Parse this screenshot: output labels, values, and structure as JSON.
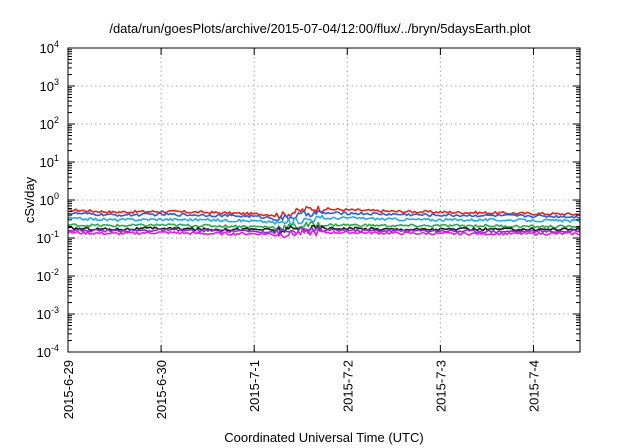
{
  "chart_data": {
    "type": "line",
    "title": "/data/run/goesPlots/archive/2015-07-04/12:00/flux/../bryn/5daysEarth.plot",
    "xlabel": "Coordinated Universal Time (UTC)",
    "ylabel": "cSv/day",
    "x_tick_labels": [
      "2015-6-29",
      "2015-6-30",
      "2015-7-1",
      "2015-7-2",
      "2015-7-3",
      "2015-7-4"
    ],
    "xlim": [
      0,
      5.5
    ],
    "y_scale": "log",
    "ylim": [
      0.0001,
      10000
    ],
    "y_ticks": [
      {
        "base": "10",
        "exp": "4"
      },
      {
        "base": "10",
        "exp": "3"
      },
      {
        "base": "10",
        "exp": "2"
      },
      {
        "base": "10",
        "exp": "1"
      },
      {
        "base": "10",
        "exp": "0"
      },
      {
        "base": "10",
        "exp": "-1"
      },
      {
        "base": "10",
        "exp": "-2"
      },
      {
        "base": "10",
        "exp": "-3"
      },
      {
        "base": "10",
        "exp": "-4"
      }
    ],
    "grid": true,
    "series": [
      {
        "color": "#e8231c",
        "x": [
          0,
          0.5,
          1,
          1.5,
          2,
          2.3,
          2.6,
          3,
          3.5,
          4,
          4.5,
          5,
          5.5
        ],
        "values": [
          0.55,
          0.48,
          0.5,
          0.47,
          0.43,
          0.4,
          0.6,
          0.55,
          0.5,
          0.48,
          0.46,
          0.44,
          0.42
        ]
      },
      {
        "color": "#2b5fd9",
        "x": [
          0,
          0.5,
          1,
          1.5,
          2,
          2.3,
          2.6,
          3,
          3.5,
          4,
          4.5,
          5,
          5.5
        ],
        "values": [
          0.45,
          0.4,
          0.42,
          0.4,
          0.37,
          0.32,
          0.45,
          0.45,
          0.42,
          0.4,
          0.39,
          0.38,
          0.36
        ]
      },
      {
        "color": "#29a8e0",
        "x": [
          0,
          0.5,
          1,
          1.5,
          2,
          2.3,
          2.6,
          3,
          3.5,
          4,
          4.5,
          5,
          5.5
        ],
        "values": [
          0.33,
          0.3,
          0.31,
          0.3,
          0.28,
          0.25,
          0.32,
          0.34,
          0.31,
          0.3,
          0.3,
          0.29,
          0.28
        ]
      },
      {
        "color": "#2aa84a",
        "x": [
          0,
          0.5,
          1,
          1.5,
          2,
          2.3,
          2.6,
          3,
          3.5,
          4,
          4.5,
          5,
          5.5
        ],
        "values": [
          0.22,
          0.21,
          0.22,
          0.21,
          0.2,
          0.19,
          0.22,
          0.22,
          0.21,
          0.21,
          0.21,
          0.2,
          0.2
        ]
      },
      {
        "color": "#1b1b1b",
        "x": [
          0,
          0.5,
          1,
          1.5,
          2,
          2.3,
          2.6,
          3,
          3.5,
          4,
          4.5,
          5,
          5.5
        ],
        "values": [
          0.18,
          0.17,
          0.18,
          0.17,
          0.17,
          0.16,
          0.18,
          0.18,
          0.17,
          0.17,
          0.17,
          0.17,
          0.17
        ]
      },
      {
        "color": "#8a2be2",
        "x": [
          0,
          0.5,
          1,
          1.5,
          2,
          2.3,
          2.6,
          3,
          3.5,
          4,
          4.5,
          5,
          5.5
        ],
        "values": [
          0.16,
          0.155,
          0.16,
          0.155,
          0.15,
          0.145,
          0.16,
          0.16,
          0.155,
          0.155,
          0.15,
          0.15,
          0.15
        ]
      },
      {
        "color": "#e020d8",
        "x": [
          0,
          0.5,
          1,
          1.5,
          2,
          2.3,
          2.6,
          3,
          3.5,
          4,
          4.5,
          5,
          5.5
        ],
        "values": [
          0.14,
          0.13,
          0.14,
          0.13,
          0.13,
          0.125,
          0.14,
          0.14,
          0.135,
          0.13,
          0.13,
          0.13,
          0.13
        ]
      }
    ]
  }
}
